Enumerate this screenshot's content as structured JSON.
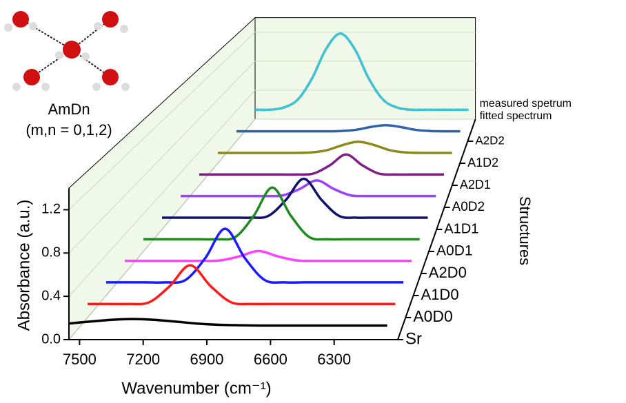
{
  "chart_data": {
    "type": "waterfall",
    "xlabel": "Wavenumber (cm⁻¹)",
    "ylabel": "Absorbance (a.u.)",
    "zlabel": "Structures",
    "annotation": {
      "title": "AmDn",
      "subtitle": "(m,n = 0,1,2)"
    },
    "x": [
      7550,
      7450,
      7350,
      7250,
      7150,
      7050,
      6950,
      6850,
      6750,
      6650,
      6550,
      6450,
      6350,
      6250,
      6150,
      6050
    ],
    "xlim": [
      7550,
      6000
    ],
    "xticks": [
      7500,
      7200,
      6900,
      6600,
      6300
    ],
    "ylim": [
      0,
      1.4
    ],
    "yticks": [
      {
        "value": 0,
        "label": "0.0"
      },
      0.4,
      0.8,
      1.2
    ],
    "series": [
      {
        "name": "Sr",
        "color": "#000000",
        "values": [
          0.149,
          0.167,
          0.183,
          0.19,
          0.183,
          0.167,
          0.149,
          0.138,
          0.133,
          0.13,
          0.13,
          0.13,
          0.13,
          0.13,
          0.13,
          0.13
        ]
      },
      {
        "name": "A0D0",
        "color": "#ff1a1a",
        "values": [
          0.13,
          0.13,
          0.13,
          0.146,
          0.3,
          0.5,
          0.3,
          0.146,
          0.13,
          0.13,
          0.13,
          0.13,
          0.13,
          0.13,
          0.13,
          0.13
        ]
      },
      {
        "name": "A1D0",
        "color": "#1a1aff",
        "values": [
          0.13,
          0.13,
          0.13,
          0.13,
          0.153,
          0.37,
          0.66,
          0.37,
          0.153,
          0.13,
          0.13,
          0.13,
          0.13,
          0.13,
          0.13,
          0.13
        ]
      },
      {
        "name": "A2D0",
        "color": "#ff40ff",
        "values": [
          0.13,
          0.13,
          0.13,
          0.13,
          0.13,
          0.134,
          0.176,
          0.23,
          0.176,
          0.134,
          0.13,
          0.13,
          0.13,
          0.13,
          0.13,
          0.13
        ]
      },
      {
        "name": "A0D1",
        "color": "#1f8a1f",
        "values": [
          0.13,
          0.13,
          0.13,
          0.13,
          0.13,
          0.154,
          0.382,
          0.68,
          0.382,
          0.154,
          0.13,
          0.13,
          0.13,
          0.13,
          0.13,
          0.13
        ]
      },
      {
        "name": "A1D1",
        "color": "#10106e",
        "values": [
          0.13,
          0.13,
          0.13,
          0.13,
          0.13,
          0.13,
          0.149,
          0.327,
          0.56,
          0.327,
          0.149,
          0.13,
          0.13,
          0.13,
          0.13,
          0.13
        ]
      },
      {
        "name": "A0D2",
        "color": "#9a40ff",
        "values": [
          0.13,
          0.13,
          0.13,
          0.13,
          0.13,
          0.13,
          0.138,
          0.212,
          0.31,
          0.212,
          0.138,
          0.13,
          0.13,
          0.13,
          0.13,
          0.13
        ]
      },
      {
        "name": "A2D1",
        "color": "#7f1f86",
        "values": [
          0.13,
          0.13,
          0.13,
          0.13,
          0.13,
          0.13,
          0.13,
          0.141,
          0.24,
          0.37,
          0.24,
          0.141,
          0.13,
          0.13,
          0.13,
          0.13
        ]
      },
      {
        "name": "A1D2",
        "color": "#8a8a1c",
        "values": [
          0.13,
          0.13,
          0.13,
          0.13,
          0.13,
          0.13,
          0.136,
          0.165,
          0.229,
          0.27,
          0.229,
          0.165,
          0.136,
          0.13,
          0.13,
          0.13
        ]
      },
      {
        "name": "A2D2",
        "color": "#2f62a8",
        "values": [
          0.13,
          0.13,
          0.13,
          0.13,
          0.13,
          0.13,
          0.13,
          0.134,
          0.15,
          0.187,
          0.21,
          0.187,
          0.15,
          0.134,
          0.13,
          0.13
        ]
      },
      {
        "name": "measured spetrum",
        "color": "#3cc4d4",
        "values": [
          0.13,
          0.13,
          0.16,
          0.27,
          0.56,
          0.97,
          1.18,
          0.97,
          0.56,
          0.27,
          0.16,
          0.13,
          0.13,
          0.13,
          0.13,
          0.13
        ]
      },
      {
        "name": "fitted spectrum",
        "color": "#c2407e",
        "dashed": true,
        "values": [
          0.13,
          0.13,
          0.16,
          0.27,
          0.56,
          0.97,
          1.18,
          0.97,
          0.56,
          0.27,
          0.16,
          0.13,
          0.13,
          0.13,
          0.13,
          0.13
        ]
      }
    ]
  }
}
